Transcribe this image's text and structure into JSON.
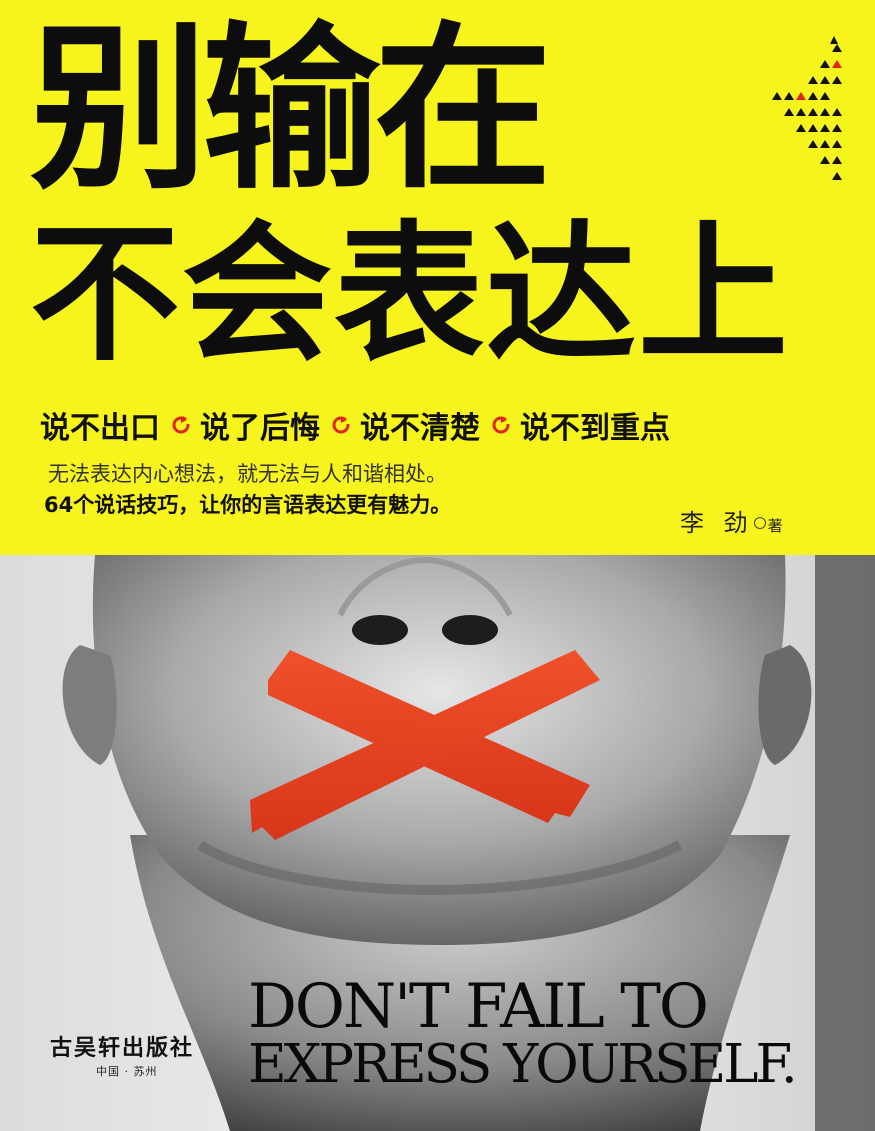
{
  "title": {
    "line1": "别输在",
    "line2": "不会表达上"
  },
  "tags": [
    "说不出口",
    "说了后悔",
    "说不清楚",
    "说不到重点"
  ],
  "description": {
    "line1": "无法表达内心想法，就无法与人和谐相处。",
    "line2": "64个说话技巧，让你的言语表达更有魅力。"
  },
  "author": {
    "name": "李 劲",
    "role": "著"
  },
  "english_title": {
    "line1": "DON'T FAIL TO",
    "line2": "EXPRESS YOURSELF."
  },
  "publisher": {
    "name": "古吴轩出版社",
    "location": "中国 · 苏州"
  },
  "colors": {
    "background_yellow": "#f7f31c",
    "title_black": "#0d0d0d",
    "accent_red": "#e0251b",
    "tape_orange": "#e8401c"
  },
  "icons": {
    "tag_separator": "circular-arrow-icon",
    "decoration": "triangle-pattern"
  }
}
